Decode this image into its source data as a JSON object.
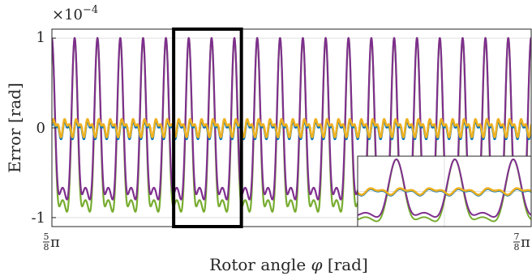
{
  "chart_data": {
    "type": "line",
    "title": "",
    "xlabel_text": "Rotor angle ",
    "xlabel_symbol": "φ",
    "xlabel_unit": " [rad]",
    "ylabel": "Error [rad]",
    "y_exponent_label": "×10",
    "y_exponent_power": "−4",
    "x_tick_labels": [
      {
        "num": "5",
        "den": "8",
        "suffix": "π"
      },
      {
        "num": "7",
        "den": "8",
        "suffix": "π"
      }
    ],
    "y_tick_labels": [
      "1",
      "0",
      "-1"
    ],
    "y_ticks": [
      1,
      0,
      -1
    ],
    "xlim": [
      1.9635,
      2.7489
    ],
    "ylim": [
      -1.1,
      1.1
    ],
    "grid": true,
    "colors": {
      "purple": "#7E2F8E",
      "green": "#77AC30",
      "blue": "#0072BD",
      "orange": "#EDB120",
      "axis": "#262626",
      "grid": "#dfdfdf"
    },
    "series": [
      {
        "color_key": "green",
        "kind": "large",
        "amplitude": 1.0,
        "trough": -0.97
      },
      {
        "color_key": "purple",
        "kind": "large",
        "amplitude": 1.0,
        "trough": -0.82
      },
      {
        "color_key": "blue",
        "kind": "small",
        "amplitude": 0.12
      },
      {
        "color_key": "orange",
        "kind": "small",
        "amplitude": 0.12
      }
    ],
    "periods_in_view": 21,
    "highlight_range": [
      2.163,
      2.274
    ],
    "inset": {
      "grid": true,
      "periods_shown": 2
    }
  }
}
